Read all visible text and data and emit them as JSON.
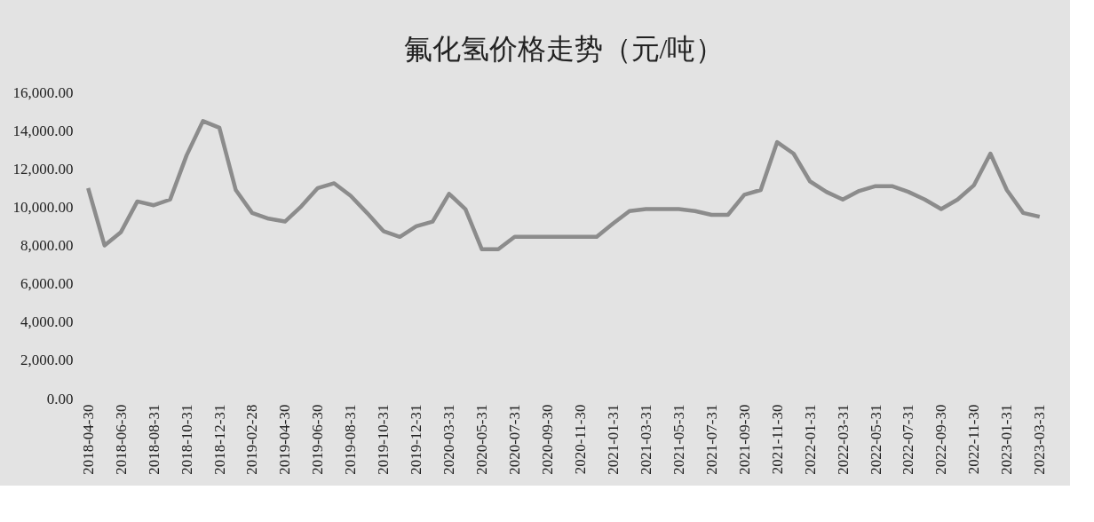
{
  "chart_data": {
    "type": "line",
    "title": "氟化氢价格走势（元/吨）",
    "categories": [
      "2018-04-30",
      null,
      "2018-06-30",
      null,
      "2018-08-31",
      null,
      "2018-10-31",
      null,
      "2018-12-31",
      null,
      "2019-02-28",
      null,
      "2019-04-30",
      null,
      "2019-06-30",
      null,
      "2019-08-31",
      null,
      "2019-10-31",
      null,
      "2019-12-31",
      null,
      "2020-03-31",
      null,
      "2020-05-31",
      null,
      "2020-07-31",
      null,
      "2020-09-30",
      null,
      "2020-11-30",
      null,
      "2021-01-31",
      null,
      "2021-03-31",
      null,
      "2021-05-31",
      null,
      "2021-07-31",
      null,
      "2021-09-30",
      null,
      "2021-11-30",
      null,
      "2022-01-31",
      null,
      "2022-03-31",
      null,
      "2022-05-31",
      null,
      "2022-07-31",
      null,
      "2022-09-30",
      null,
      "2022-11-30",
      null,
      "2023-01-31",
      null,
      "2023-03-31"
    ],
    "series": [
      {
        "color": "#8c8c8c",
        "values": [
          11000,
          8000,
          8700,
          10300,
          10100,
          10400,
          12700,
          14500,
          14150,
          10900,
          9700,
          9400,
          9250,
          10050,
          11000,
          11250,
          10600,
          9700,
          8750,
          8450,
          9000,
          9250,
          10700,
          9900,
          7800,
          7800,
          8450,
          8450,
          8450,
          8450,
          8450,
          8450,
          9150,
          9800,
          9900,
          9900,
          9900,
          9800,
          9600,
          9600,
          10650,
          10900,
          13400,
          12800,
          11350,
          10800,
          10400,
          10850,
          11100,
          11100,
          10800,
          10400,
          9900,
          10400,
          11150,
          12800,
          10900,
          9700,
          9500
        ]
      }
    ],
    "ylim": [
      0,
      16000
    ],
    "yticks": [
      {
        "value": 0,
        "label": "0.00"
      },
      {
        "value": 2000,
        "label": "2,000.00"
      },
      {
        "value": 4000,
        "label": "4,000.00"
      },
      {
        "value": 6000,
        "label": "6,000.00"
      },
      {
        "value": 8000,
        "label": "8,000.00"
      },
      {
        "value": 10000,
        "label": "10,000.00"
      },
      {
        "value": 12000,
        "label": "12,000.00"
      },
      {
        "value": 14000,
        "label": "14,000.00"
      },
      {
        "value": 16000,
        "label": "16,000.00"
      }
    ],
    "grid": false,
    "marker": "none",
    "line_style": "solid"
  }
}
